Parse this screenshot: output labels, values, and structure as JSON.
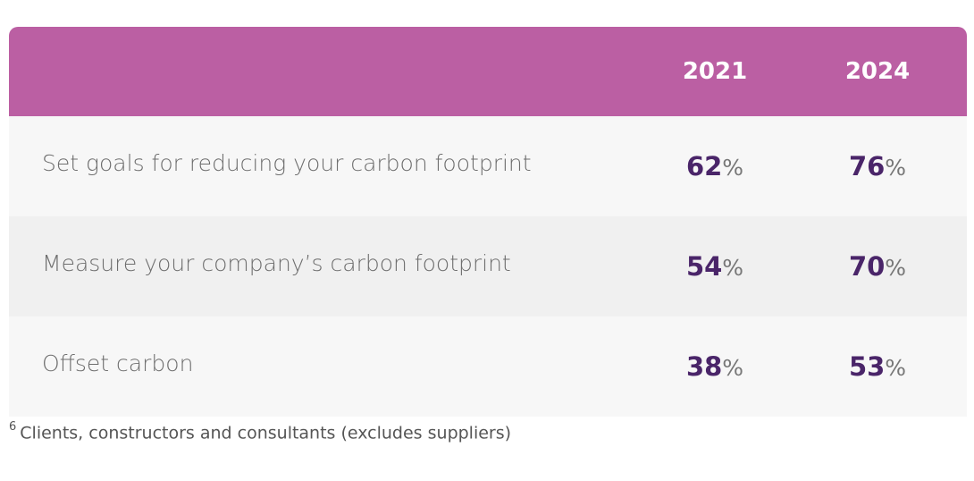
{
  "chart_data": {
    "type": "table",
    "columns": [
      "2021",
      "2024"
    ],
    "rows": [
      {
        "label": "Set goals for reducing your carbon footprint",
        "values": [
          62,
          76
        ]
      },
      {
        "label": "Measure your company’s carbon footprint",
        "values": [
          54,
          70
        ]
      },
      {
        "label": "Offset carbon",
        "values": [
          38,
          53
        ]
      }
    ],
    "unit": "%"
  },
  "footnote": {
    "marker": "6",
    "text": "Clients, constructors and consultants (excludes suppliers)"
  },
  "colors": {
    "header": "#bb5fa3",
    "value": "#4a2569",
    "row_light": "#f7f7f7",
    "row_dark": "#f0f0f0"
  }
}
